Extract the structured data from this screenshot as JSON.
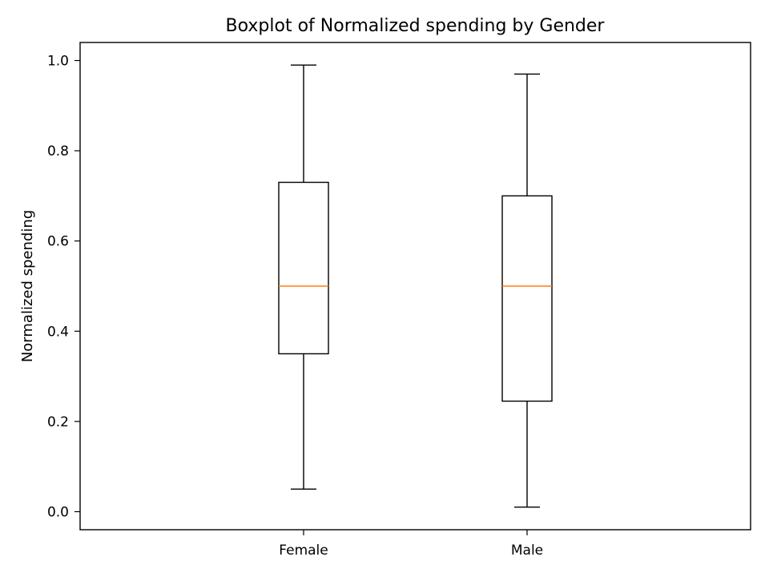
{
  "chart_data": {
    "type": "boxplot",
    "title": "Boxplot of Normalized spending by Gender",
    "xlabel": "",
    "ylabel": "Normalized spending",
    "ylim": [
      -0.04,
      1.04
    ],
    "yticks": [
      0.0,
      0.2,
      0.4,
      0.6,
      0.8,
      1.0
    ],
    "ytick_labels": [
      "0.0",
      "0.2",
      "0.4",
      "0.6",
      "0.8",
      "1.0"
    ],
    "grid": false,
    "legend": "none",
    "categories": [
      "Female",
      "Male"
    ],
    "boxes": [
      {
        "category": "Female",
        "whisker_low": 0.05,
        "q1": 0.35,
        "median": 0.5,
        "q3": 0.73,
        "whisker_high": 0.99
      },
      {
        "category": "Male",
        "whisker_low": 0.01,
        "q1": 0.245,
        "median": 0.5,
        "q3": 0.7,
        "whisker_high": 0.97
      }
    ],
    "colors": {
      "box": "#000000",
      "median": "#ff7f0e"
    }
  }
}
